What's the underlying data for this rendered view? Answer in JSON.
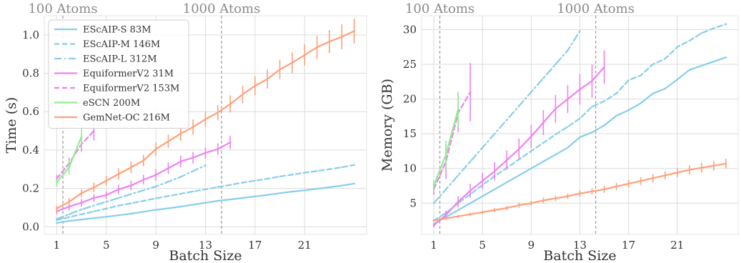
{
  "chart_data": [
    {
      "type": "line",
      "xlabel": "Batch Size",
      "ylabel": "Time (s)",
      "xlim": [
        0,
        26
      ],
      "ylim": [
        -0.04,
        1.1
      ],
      "xticks": [
        1,
        5,
        9,
        13,
        17,
        21
      ],
      "yticks": [
        0.0,
        0.2,
        0.4,
        0.6,
        0.8,
        1.0
      ],
      "ytick_labels": [
        "0.0",
        "0.2",
        "0.4",
        "0.6",
        "0.8",
        "1.0"
      ],
      "grid": true,
      "legend": "top-left",
      "vlines": [
        {
          "x": 1.5,
          "label": "100 Atoms"
        },
        {
          "x": 14.3,
          "label": "1000 Atoms"
        }
      ],
      "series": [
        {
          "name": "EScAIP-S 83M",
          "color": "#87CEEB",
          "dash": "solid",
          "x": [
            1,
            2,
            3,
            4,
            5,
            6,
            7,
            8,
            9,
            10,
            11,
            12,
            13,
            14,
            15,
            16,
            17,
            18,
            19,
            20,
            21,
            22,
            23,
            24,
            25
          ],
          "y": [
            0.02,
            0.03,
            0.038,
            0.045,
            0.052,
            0.06,
            0.068,
            0.078,
            0.088,
            0.096,
            0.105,
            0.115,
            0.125,
            0.135,
            0.142,
            0.15,
            0.158,
            0.166,
            0.175,
            0.183,
            0.19,
            0.198,
            0.206,
            0.215,
            0.225
          ]
        },
        {
          "name": "EScAIP-M 146M",
          "color": "#87CEEB",
          "dash": "dashed",
          "x": [
            1,
            2,
            3,
            4,
            5,
            6,
            7,
            8,
            9,
            10,
            11,
            12,
            13,
            14,
            15,
            16,
            17,
            18,
            19,
            20,
            21,
            22,
            23,
            24,
            25
          ],
          "y": [
            0.035,
            0.05,
            0.065,
            0.08,
            0.095,
            0.11,
            0.122,
            0.135,
            0.148,
            0.16,
            0.172,
            0.184,
            0.195,
            0.207,
            0.218,
            0.23,
            0.24,
            0.25,
            0.262,
            0.272,
            0.282,
            0.29,
            0.3,
            0.31,
            0.322
          ]
        },
        {
          "name": "EScAIP-L 312M",
          "color": "#87CEEB",
          "dash": "dashdot",
          "x": [
            1,
            2,
            3,
            4,
            5,
            6,
            7,
            8,
            9,
            10,
            11,
            12,
            13
          ],
          "y": [
            0.04,
            0.065,
            0.09,
            0.11,
            0.13,
            0.15,
            0.17,
            0.19,
            0.21,
            0.235,
            0.26,
            0.29,
            0.32
          ]
        },
        {
          "name": "EquiformerV2 31M",
          "color": "#EE82EE",
          "dash": "solid",
          "x": [
            1,
            2,
            3,
            4,
            5,
            6,
            7,
            8,
            9,
            10,
            11,
            12,
            13,
            14,
            15
          ],
          "y": [
            0.08,
            0.105,
            0.125,
            0.15,
            0.165,
            0.195,
            0.215,
            0.245,
            0.27,
            0.305,
            0.34,
            0.36,
            0.385,
            0.405,
            0.44
          ],
          "err": [
            0.015,
            0.02,
            0.02,
            0.02,
            0.02,
            0.025,
            0.025,
            0.025,
            0.03,
            0.03,
            0.03,
            0.03,
            0.03,
            0.03,
            0.035
          ]
        },
        {
          "name": "EquiformerV2 153M",
          "color": "#EE82EE",
          "dash": "dashed",
          "x": [
            1,
            2,
            3,
            4
          ],
          "y": [
            0.25,
            0.33,
            0.43,
            0.5
          ],
          "err": [
            0.02,
            0.03,
            0.04,
            0.05
          ]
        },
        {
          "name": "eSCN 200M",
          "color": "#90EE90",
          "dash": "solid",
          "x": [
            1,
            2,
            3
          ],
          "y": [
            0.23,
            0.31,
            0.47
          ],
          "err": [
            0.02,
            0.04,
            0.06
          ]
        },
        {
          "name": "GemNet-OC 216M",
          "color": "#FFA07A",
          "dash": "solid",
          "x": [
            1,
            2,
            3,
            4,
            5,
            6,
            7,
            8,
            9,
            10,
            11,
            12,
            13,
            14,
            15,
            16,
            17,
            18,
            19,
            20,
            21,
            22,
            23,
            24,
            25
          ],
          "y": [
            0.095,
            0.13,
            0.175,
            0.205,
            0.24,
            0.275,
            0.31,
            0.345,
            0.405,
            0.445,
            0.485,
            0.52,
            0.56,
            0.595,
            0.64,
            0.69,
            0.735,
            0.77,
            0.82,
            0.855,
            0.895,
            0.935,
            0.965,
            0.99,
            1.02
          ],
          "err": [
            0.015,
            0.02,
            0.02,
            0.025,
            0.025,
            0.03,
            0.03,
            0.03,
            0.035,
            0.035,
            0.035,
            0.04,
            0.04,
            0.04,
            0.045,
            0.045,
            0.05,
            0.05,
            0.05,
            0.055,
            0.055,
            0.06,
            0.06,
            0.065,
            0.065
          ]
        }
      ]
    },
    {
      "type": "line",
      "xlabel": "Batch Size",
      "ylabel": "Memory (GB)",
      "xlim": [
        0,
        26
      ],
      "ylim": [
        0.5,
        32
      ],
      "xticks": [
        1,
        5,
        9,
        13,
        17,
        21
      ],
      "yticks": [
        5,
        10,
        15,
        20,
        25,
        30
      ],
      "ytick_labels": [
        "5",
        "10",
        "15",
        "20",
        "25",
        "30"
      ],
      "grid": true,
      "vlines": [
        {
          "x": 1.5,
          "label": "100 Atoms"
        },
        {
          "x": 14.3,
          "label": "1000 Atoms"
        }
      ],
      "series": [
        {
          "name": "EScAIP-S 83M",
          "color": "#87CEEB",
          "dash": "solid",
          "x": [
            1,
            2,
            3,
            4,
            5,
            6,
            7,
            8,
            9,
            10,
            11,
            12,
            13,
            14,
            15,
            16,
            17,
            18,
            19,
            20,
            21,
            22,
            23,
            24,
            25
          ],
          "y": [
            2.0,
            3.0,
            4.0,
            5.0,
            6.0,
            7.0,
            8.0,
            9.0,
            10.0,
            11.0,
            12.0,
            13.0,
            14.5,
            15.2,
            16.2,
            17.6,
            18.4,
            19.4,
            20.8,
            21.5,
            22.8,
            24.2,
            24.8,
            25.4,
            26.0
          ]
        },
        {
          "name": "EScAIP-M 146M",
          "color": "#87CEEB",
          "dash": "dashed",
          "x": [
            1,
            2,
            3,
            4,
            5,
            6,
            7,
            8,
            9,
            10,
            11,
            12,
            13,
            14,
            15,
            16,
            17,
            18,
            19,
            20,
            21,
            22,
            23,
            24,
            25
          ],
          "y": [
            2.5,
            3.6,
            5.0,
            6.3,
            7.6,
            8.9,
            10.1,
            11.3,
            12.5,
            13.7,
            14.9,
            16.0,
            17.2,
            18.9,
            19.7,
            20.8,
            22.7,
            23.4,
            25.0,
            25.8,
            27.5,
            28.4,
            29.5,
            30.2,
            30.8
          ]
        },
        {
          "name": "EScAIP-L 312M",
          "color": "#87CEEB",
          "dash": "dashdot",
          "x": [
            1,
            2,
            3,
            4,
            5,
            6,
            7,
            8,
            9,
            10,
            11,
            12,
            13
          ],
          "y": [
            5.0,
            7.0,
            9.0,
            11.0,
            13.0,
            15.0,
            17.0,
            19.0,
            21.0,
            23.0,
            25.0,
            27.0,
            29.8
          ]
        },
        {
          "name": "EquiformerV2 31M",
          "color": "#EE82EE",
          "dash": "solid",
          "x": [
            1,
            2,
            3,
            4,
            5,
            6,
            7,
            8,
            9,
            10,
            11,
            12,
            13,
            14,
            15
          ],
          "y": [
            1.8,
            3.3,
            5.2,
            6.8,
            8.2,
            9.6,
            11.2,
            12.8,
            14.6,
            16.6,
            18.6,
            20.0,
            21.4,
            22.6,
            24.6
          ],
          "err": [
            0.3,
            0.6,
            0.8,
            1.0,
            1.2,
            1.3,
            1.4,
            1.5,
            1.7,
            1.8,
            2.0,
            2.0,
            2.2,
            2.4,
            2.4
          ]
        },
        {
          "name": "EquiformerV2 153M",
          "color": "#EE82EE",
          "dash": "dashed",
          "x": [
            1,
            2,
            3,
            4
          ],
          "y": [
            7.0,
            11.0,
            18.0,
            21.0
          ],
          "err": [
            0.8,
            2.5,
            2.8,
            4.2
          ]
        },
        {
          "name": "eSCN 200M",
          "color": "#90EE90",
          "dash": "solid",
          "x": [
            1,
            2,
            3
          ],
          "y": [
            7.5,
            12.0,
            18.5
          ],
          "err": [
            0.8,
            2.0,
            2.6
          ]
        },
        {
          "name": "GemNet-OC 216M",
          "color": "#FFA07A",
          "dash": "solid",
          "x": [
            1,
            2,
            3,
            4,
            5,
            6,
            7,
            8,
            9,
            10,
            11,
            12,
            13,
            14,
            15,
            16,
            17,
            18,
            19,
            20,
            21,
            22,
            23,
            24,
            25
          ],
          "y": [
            2.5,
            2.8,
            3.1,
            3.4,
            3.7,
            4.0,
            4.3,
            4.7,
            5.0,
            5.4,
            5.7,
            6.0,
            6.4,
            6.7,
            7.0,
            7.4,
            7.8,
            8.2,
            8.6,
            9.0,
            9.4,
            9.8,
            10.1,
            10.4,
            10.7
          ],
          "err": [
            0.2,
            0.2,
            0.2,
            0.25,
            0.25,
            0.3,
            0.3,
            0.35,
            0.35,
            0.4,
            0.4,
            0.4,
            0.45,
            0.45,
            0.5,
            0.5,
            0.55,
            0.55,
            0.6,
            0.6,
            0.65,
            0.65,
            0.7,
            0.7,
            0.7
          ]
        }
      ]
    }
  ]
}
